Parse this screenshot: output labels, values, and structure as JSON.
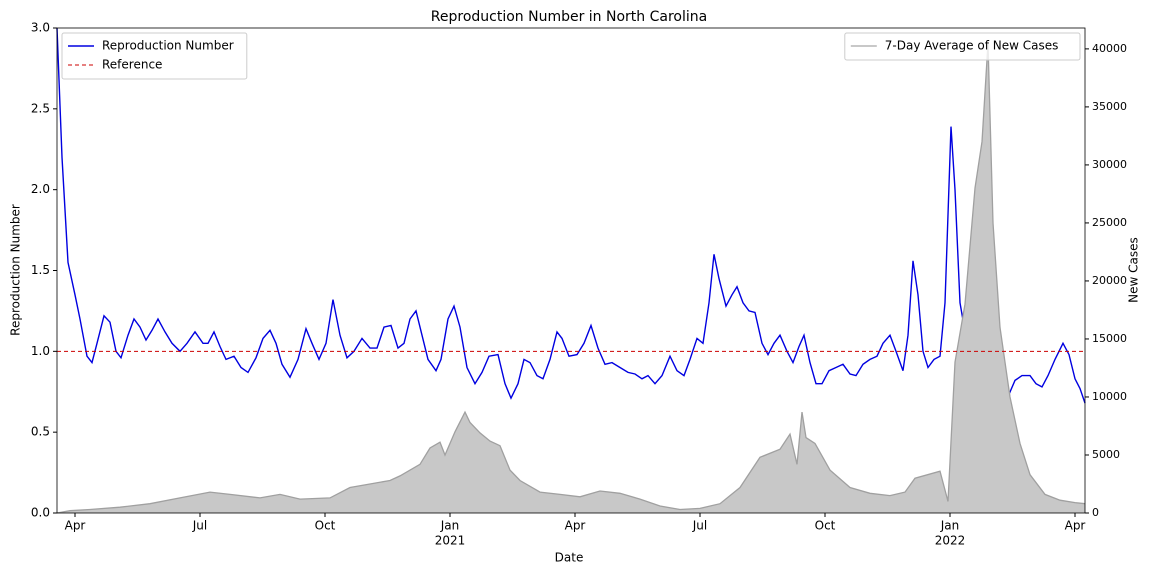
{
  "chart_data": {
    "type": "line",
    "title": "Reproduction Number in North Carolina",
    "xlabel": "Date",
    "ylabel": "Reproduction Number",
    "y2label": "New Cases",
    "xlim": [
      2020.214,
      2022.27
    ],
    "xticks": [
      {
        "value": 2020.25,
        "label": "Apr"
      },
      {
        "value": 2020.5,
        "label": "Jul"
      },
      {
        "value": 2020.75,
        "label": "Oct"
      },
      {
        "value": 2021,
        "label": "Jan"
      },
      {
        "value": 2021.25,
        "label": "Apr"
      },
      {
        "value": 2021.5,
        "label": "Jul"
      },
      {
        "value": 2021.75,
        "label": "Oct"
      },
      {
        "value": 2022,
        "label": "Jan"
      },
      {
        "value": 2022.25,
        "label": "Apr"
      }
    ],
    "xticks_year": [
      {
        "value": 2021,
        "label": "2021"
      },
      {
        "value": 2022,
        "label": "2022"
      }
    ],
    "ylim": [
      0,
      3
    ],
    "yticks": [
      {
        "value": 0,
        "label": "0.0"
      },
      0.5,
      {
        "value": 1,
        "label": "1.0"
      },
      1.5,
      {
        "value": 2,
        "label": "2.0"
      },
      2.5,
      {
        "value": 3,
        "label": "3.0"
      }
    ],
    "y2lim": [
      0,
      41800
    ],
    "y2ticks": [
      0,
      5000,
      10000,
      15000,
      20000,
      25000,
      30000,
      35000,
      40000
    ],
    "series": [
      {
        "name": "Reproduction Number",
        "type": "line",
        "color": "#0000e0",
        "x": [
          2020.214,
          2020.224,
          2020.236,
          2020.25,
          2020.26,
          2020.274,
          2020.284,
          2020.294,
          2020.308,
          2020.32,
          2020.332,
          2020.342,
          2020.356,
          2020.368,
          2020.38,
          2020.392,
          2020.404,
          2020.416,
          2020.43,
          2020.444,
          2020.46,
          2020.474,
          2020.49,
          2020.506,
          2020.516,
          2020.528,
          2020.54,
          2020.552,
          2020.568,
          2020.582,
          2020.596,
          2020.612,
          2020.626,
          2020.64,
          2020.652,
          2020.664,
          2020.68,
          2020.696,
          2020.712,
          2020.724,
          2020.738,
          2020.752,
          2020.766,
          2020.78,
          2020.794,
          2020.808,
          2020.824,
          2020.84,
          2020.854,
          2020.868,
          2020.882,
          2020.896,
          2020.908,
          2020.92,
          2020.932,
          2020.944,
          2020.956,
          2020.972,
          2020.982,
          2020.996,
          2021.008,
          2021.02,
          2021.034,
          2021.05,
          2021.064,
          2021.078,
          2021.096,
          2021.11,
          2021.122,
          2021.136,
          2021.148,
          2021.16,
          2021.174,
          2021.186,
          2021.2,
          2021.214,
          2021.224,
          2021.238,
          2021.254,
          2021.268,
          2021.282,
          2021.296,
          2021.31,
          2021.324,
          2021.34,
          2021.356,
          2021.37,
          2021.384,
          2021.396,
          2021.41,
          2021.424,
          2021.44,
          2021.454,
          2021.468,
          2021.48,
          2021.494,
          2021.506,
          2021.518,
          2021.528,
          2021.538,
          2021.552,
          2021.564,
          2021.574,
          2021.586,
          2021.598,
          2021.61,
          2021.624,
          2021.636,
          2021.648,
          2021.66,
          2021.674,
          2021.686,
          2021.698,
          2021.708,
          2021.72,
          2021.732,
          2021.744,
          2021.758,
          2021.772,
          2021.786,
          2021.8,
          2021.812,
          2021.826,
          2021.84,
          2021.854,
          2021.866,
          2021.88,
          2021.892,
          2021.906,
          2021.916,
          2021.926,
          2021.936,
          2021.946,
          2021.956,
          2021.968,
          2021.98,
          2021.99,
          2022.002,
          2022.01,
          2022.02,
          2022.03,
          2022.044,
          2022.056,
          2022.068,
          2022.08,
          2022.092,
          2022.104,
          2022.116,
          2022.13,
          2022.144,
          2022.16,
          2022.172,
          2022.184,
          2022.196,
          2022.21,
          2022.226,
          2022.238,
          2022.25,
          2022.26,
          2022.27
        ],
        "values": [
          3.0,
          2.2,
          1.55,
          1.35,
          1.2,
          0.97,
          0.93,
          1.05,
          1.22,
          1.18,
          1.0,
          0.96,
          1.1,
          1.2,
          1.15,
          1.07,
          1.13,
          1.2,
          1.12,
          1.05,
          1.0,
          1.05,
          1.12,
          1.05,
          1.05,
          1.12,
          1.03,
          0.95,
          0.97,
          0.9,
          0.87,
          0.96,
          1.08,
          1.13,
          1.05,
          0.92,
          0.84,
          0.95,
          1.14,
          1.05,
          0.95,
          1.05,
          1.32,
          1.1,
          0.96,
          1.0,
          1.08,
          1.02,
          1.02,
          1.15,
          1.16,
          1.02,
          1.05,
          1.2,
          1.25,
          1.1,
          0.95,
          0.88,
          0.95,
          1.2,
          1.28,
          1.15,
          0.9,
          0.8,
          0.87,
          0.97,
          0.98,
          0.8,
          0.71,
          0.8,
          0.95,
          0.93,
          0.85,
          0.83,
          0.95,
          1.12,
          1.08,
          0.97,
          0.98,
          1.05,
          1.16,
          1.02,
          0.92,
          0.93,
          0.9,
          0.87,
          0.86,
          0.83,
          0.85,
          0.8,
          0.85,
          0.97,
          0.88,
          0.85,
          0.95,
          1.08,
          1.05,
          1.3,
          1.6,
          1.45,
          1.28,
          1.35,
          1.4,
          1.3,
          1.25,
          1.24,
          1.05,
          0.98,
          1.05,
          1.1,
          1.0,
          0.93,
          1.03,
          1.1,
          0.93,
          0.8,
          0.8,
          0.88,
          0.9,
          0.92,
          0.86,
          0.85,
          0.92,
          0.95,
          0.97,
          1.05,
          1.1,
          1.0,
          0.88,
          1.1,
          1.56,
          1.35,
          1.0,
          0.9,
          0.95,
          0.97,
          1.3,
          2.39,
          2.0,
          1.3,
          1.12,
          1.11,
          1.05,
          0.9,
          0.7,
          0.58,
          0.6,
          0.72,
          0.82,
          0.85,
          0.85,
          0.8,
          0.78,
          0.85,
          0.95,
          1.05,
          0.98,
          0.83,
          0.77,
          0.68
        ]
      },
      {
        "name": "7-Day Average of New Cases",
        "type": "area",
        "axis": "y2",
        "color": "#c8c8c8",
        "edge_color": "#a0a0a0",
        "x": [
          2020.214,
          2020.24,
          2020.28,
          2020.34,
          2020.4,
          2020.46,
          2020.52,
          2020.56,
          2020.62,
          2020.66,
          2020.7,
          2020.76,
          2020.8,
          2020.84,
          2020.88,
          2020.9,
          2020.94,
          2020.96,
          2020.98,
          2020.99,
          2021.01,
          2021.03,
          2021.04,
          2021.06,
          2021.08,
          2021.1,
          2021.12,
          2021.14,
          2021.18,
          2021.22,
          2021.26,
          2021.3,
          2021.34,
          2021.38,
          2021.42,
          2021.46,
          2021.5,
          2021.54,
          2021.58,
          2021.62,
          2021.66,
          2021.68,
          2021.694,
          2021.704,
          2021.712,
          2021.73,
          2021.76,
          2021.8,
          2021.84,
          2021.88,
          2021.91,
          2021.93,
          2021.98,
          2021.996,
          2022.01,
          2022.03,
          2022.05,
          2022.064,
          2022.076,
          2022.086,
          2022.1,
          2022.12,
          2022.14,
          2022.16,
          2022.19,
          2022.22,
          2022.25,
          2022.27
        ],
        "values": [
          0,
          200,
          300,
          500,
          800,
          1300,
          1800,
          1600,
          1300,
          1600,
          1200,
          1300,
          2200,
          2500,
          2800,
          3200,
          4200,
          5600,
          6100,
          5000,
          7000,
          8700,
          7800,
          6900,
          6200,
          5800,
          3700,
          2800,
          1800,
          1600,
          1400,
          1900,
          1700,
          1200,
          600,
          300,
          400,
          800,
          2200,
          4800,
          5500,
          6800,
          4200,
          8700,
          6500,
          6000,
          3700,
          2200,
          1700,
          1500,
          1800,
          3000,
          3600,
          1000,
          13000,
          18000,
          28000,
          32000,
          40500,
          25000,
          16000,
          10000,
          6000,
          3300,
          1600,
          1100,
          900,
          800
        ]
      }
    ],
    "hlines": [
      {
        "name": "Reference",
        "y": 1,
        "color": "#cc0000",
        "style": "dashed"
      }
    ],
    "legend": "upper left",
    "legend2": "upper right"
  }
}
